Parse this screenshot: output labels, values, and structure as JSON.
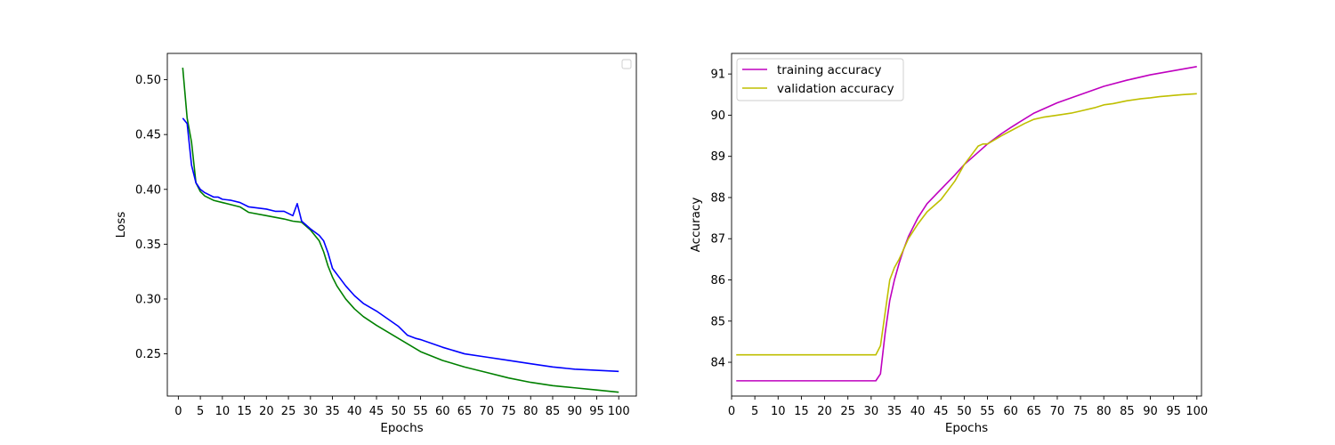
{
  "chart_data": [
    {
      "type": "line",
      "title": "",
      "xlabel": "Epochs",
      "ylabel": "Loss",
      "xlim": [
        -2.5,
        104
      ],
      "ylim": [
        0.2115,
        0.524
      ],
      "x_ticks": [
        0,
        5,
        10,
        15,
        20,
        25,
        30,
        35,
        40,
        45,
        50,
        55,
        60,
        65,
        70,
        75,
        80,
        85,
        90,
        95,
        100
      ],
      "y_ticks": [
        0.25,
        0.3,
        0.35,
        0.4,
        0.45,
        0.5
      ],
      "y_tick_labels": [
        "0.25",
        "0.30",
        "0.35",
        "0.40",
        "0.45",
        "0.50"
      ],
      "grid": false,
      "legend": {
        "placement": "top-right",
        "entries": []
      },
      "series": [
        {
          "color": "#008000",
          "x": [
            1,
            2,
            3,
            4,
            5,
            6,
            8,
            10,
            14,
            16,
            20,
            24,
            26,
            28,
            30,
            32,
            33,
            34,
            35,
            36,
            38,
            40,
            42,
            45,
            50,
            55,
            60,
            65,
            70,
            75,
            80,
            85,
            90,
            95,
            100
          ],
          "y": [
            0.511,
            0.465,
            0.443,
            0.406,
            0.398,
            0.394,
            0.39,
            0.388,
            0.384,
            0.379,
            0.376,
            0.373,
            0.371,
            0.37,
            0.363,
            0.353,
            0.343,
            0.33,
            0.32,
            0.312,
            0.3,
            0.291,
            0.284,
            0.276,
            0.264,
            0.252,
            0.244,
            0.238,
            0.233,
            0.228,
            0.224,
            0.221,
            0.219,
            0.217,
            0.215
          ]
        },
        {
          "color": "#0000ff",
          "x": [
            1,
            2,
            3,
            4,
            5,
            6,
            8,
            9,
            10,
            12,
            14,
            16,
            20,
            22,
            24,
            26,
            27,
            28,
            30,
            32,
            33,
            34,
            35,
            38,
            40,
            42,
            45,
            50,
            52,
            54,
            55,
            60,
            65,
            70,
            75,
            80,
            85,
            90,
            95,
            100
          ],
          "y": [
            0.465,
            0.46,
            0.422,
            0.406,
            0.4,
            0.397,
            0.393,
            0.393,
            0.391,
            0.39,
            0.388,
            0.384,
            0.382,
            0.38,
            0.38,
            0.376,
            0.387,
            0.371,
            0.364,
            0.358,
            0.353,
            0.342,
            0.328,
            0.312,
            0.303,
            0.296,
            0.289,
            0.275,
            0.267,
            0.264,
            0.263,
            0.256,
            0.25,
            0.247,
            0.244,
            0.241,
            0.238,
            0.236,
            0.235,
            0.234
          ]
        }
      ]
    },
    {
      "type": "line",
      "title": "",
      "xlabel": "Epochs",
      "ylabel": "Accuracy",
      "xlim": [
        0,
        101
      ],
      "ylim": [
        83.18,
        91.5
      ],
      "x_ticks": [
        0,
        5,
        10,
        15,
        20,
        25,
        30,
        35,
        40,
        45,
        50,
        55,
        60,
        65,
        70,
        75,
        80,
        85,
        90,
        95,
        100
      ],
      "y_ticks": [
        84,
        85,
        86,
        87,
        88,
        89,
        90,
        91
      ],
      "y_tick_labels": [
        "84",
        "85",
        "86",
        "87",
        "88",
        "89",
        "90",
        "91"
      ],
      "grid": false,
      "legend": {
        "placement": "top-left"
      },
      "series": [
        {
          "name": "training accuracy",
          "color": "#bf00bf",
          "x": [
            1,
            31,
            32,
            33,
            34,
            35,
            36,
            37,
            38,
            40,
            42,
            45,
            48,
            50,
            53,
            55,
            58,
            60,
            65,
            70,
            75,
            80,
            85,
            90,
            95,
            100
          ],
          "y": [
            83.55,
            83.55,
            83.72,
            84.7,
            85.5,
            86.0,
            86.4,
            86.75,
            87.05,
            87.5,
            87.85,
            88.2,
            88.55,
            88.8,
            89.1,
            89.3,
            89.55,
            89.7,
            90.05,
            90.3,
            90.5,
            90.7,
            90.85,
            90.98,
            91.08,
            91.18
          ]
        },
        {
          "name": "validation accuracy",
          "color": "#bfbf00",
          "x": [
            1,
            31,
            32,
            33,
            34,
            35,
            36,
            37,
            38,
            40,
            42,
            45,
            48,
            50,
            52,
            53,
            54,
            55,
            58,
            60,
            63,
            65,
            67,
            70,
            73,
            75,
            78,
            80,
            82,
            85,
            88,
            90,
            92,
            94,
            95,
            97,
            100
          ],
          "y": [
            84.18,
            84.18,
            84.4,
            85.2,
            86.0,
            86.3,
            86.5,
            86.75,
            87.0,
            87.35,
            87.65,
            87.95,
            88.4,
            88.8,
            89.1,
            89.25,
            89.3,
            89.3,
            89.5,
            89.62,
            89.8,
            89.9,
            89.95,
            90.0,
            90.05,
            90.1,
            90.18,
            90.25,
            90.28,
            90.35,
            90.4,
            90.42,
            90.45,
            90.47,
            90.48,
            90.5,
            90.52
          ]
        }
      ]
    }
  ]
}
